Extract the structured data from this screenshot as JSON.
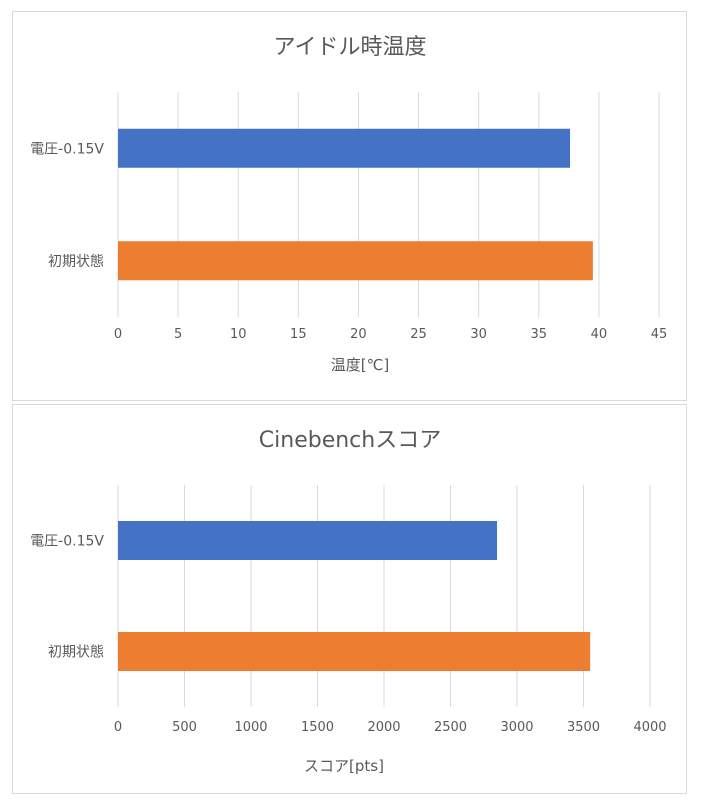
{
  "chart_data": [
    {
      "type": "bar",
      "orientation": "horizontal",
      "title": "アイドル時温度",
      "xlabel": "温度[℃]",
      "ylabel": "",
      "categories": [
        "電圧-0.15V",
        "初期状態"
      ],
      "values": [
        37.6,
        39.5
      ],
      "colors": [
        "#4472C4",
        "#ED7D31"
      ],
      "xlim": [
        0,
        45
      ],
      "ticks": [
        "0",
        "5",
        "10",
        "15",
        "20",
        "25",
        "30",
        "35",
        "40",
        "45"
      ],
      "grid": true
    },
    {
      "type": "bar",
      "orientation": "horizontal",
      "title": "Cinebenchスコア",
      "xlabel": "スコア[pts]",
      "ylabel": "",
      "categories": [
        "電圧-0.15V",
        "初期状態"
      ],
      "values": [
        2850,
        3550
      ],
      "colors": [
        "#4472C4",
        "#ED7D31"
      ],
      "xlim": [
        0,
        4000
      ],
      "ticks": [
        "0",
        "500",
        "1000",
        "1500",
        "2000",
        "2500",
        "3000",
        "3500",
        "4000"
      ],
      "grid": true
    }
  ]
}
